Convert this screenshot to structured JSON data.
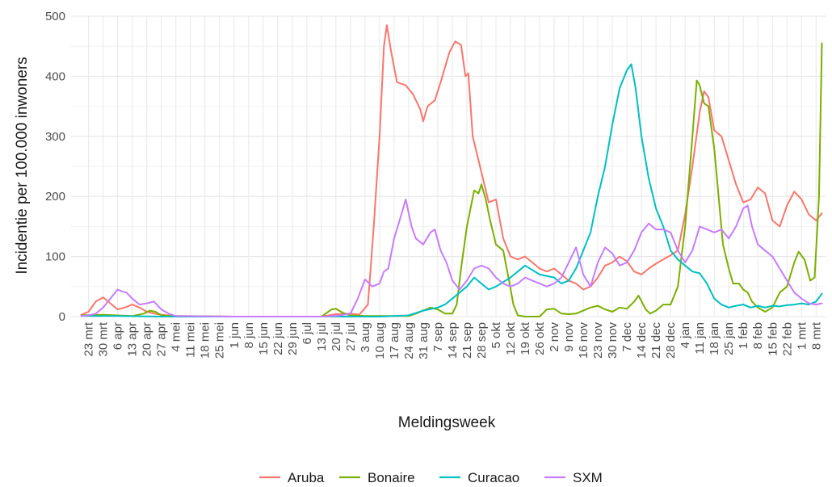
{
  "chart_data": {
    "type": "line",
    "xlabel": "Meldingsweek",
    "ylabel": "Incidentie per 100.000 inwoners",
    "ylim": [
      0,
      500
    ],
    "yticks": [
      0,
      100,
      200,
      300,
      400,
      500
    ],
    "grid": true,
    "legend_position": "bottom",
    "categories": [
      "23 mrt",
      "30 mrt",
      "6 apr",
      "13 apr",
      "20 apr",
      "27 apr",
      "4 mei",
      "11 mei",
      "18 mei",
      "25 mei",
      "1 jun",
      "8 jun",
      "15 jun",
      "22 jun",
      "29 jun",
      "6 jul",
      "13 jul",
      "20 jul",
      "27 jul",
      "3 aug",
      "10 aug",
      "17 aug",
      "24 aug",
      "31 aug",
      "7 sep",
      "14 sep",
      "21 sep",
      "28 sep",
      "5 okt",
      "12 okt",
      "19 okt",
      "26 okt",
      "2 nov",
      "9 nov",
      "16 nov",
      "23 nov",
      "30 nov",
      "7 dec",
      "14 dec",
      "21 dec",
      "28 dec",
      "4 jan",
      "11 jan",
      "18 jan",
      "25 jan",
      "1 feb",
      "8 feb",
      "15 feb",
      "22 feb",
      "1 mrt",
      "8 mrt"
    ],
    "series": [
      {
        "name": "Aruba",
        "color": "#F8766D",
        "points": [
          [
            -0.5,
            3
          ],
          [
            0,
            8
          ],
          [
            0.5,
            25
          ],
          [
            1,
            32
          ],
          [
            1.5,
            22
          ],
          [
            2,
            12
          ],
          [
            2.5,
            15
          ],
          [
            3,
            20
          ],
          [
            3.5,
            15
          ],
          [
            4,
            8
          ],
          [
            4.5,
            5
          ],
          [
            5,
            3
          ],
          [
            6,
            1
          ],
          [
            10,
            0
          ],
          [
            16,
            0
          ],
          [
            17,
            4
          ],
          [
            18,
            5
          ],
          [
            18.6,
            3
          ],
          [
            19.2,
            20
          ],
          [
            19.6,
            150
          ],
          [
            20,
            300
          ],
          [
            20.3,
            450
          ],
          [
            20.5,
            485
          ],
          [
            20.8,
            440
          ],
          [
            21.2,
            390
          ],
          [
            21.8,
            385
          ],
          [
            22.3,
            370
          ],
          [
            22.8,
            345
          ],
          [
            23,
            325
          ],
          [
            23.3,
            350
          ],
          [
            23.8,
            360
          ],
          [
            24.2,
            390
          ],
          [
            24.8,
            440
          ],
          [
            25.2,
            458
          ],
          [
            25.6,
            452
          ],
          [
            25.9,
            400
          ],
          [
            26.1,
            405
          ],
          [
            26.4,
            300
          ],
          [
            27,
            240
          ],
          [
            27.5,
            190
          ],
          [
            28,
            195
          ],
          [
            28.5,
            130
          ],
          [
            29,
            100
          ],
          [
            29.5,
            95
          ],
          [
            30,
            100
          ],
          [
            30.5,
            90
          ],
          [
            31,
            80
          ],
          [
            31.5,
            75
          ],
          [
            32,
            80
          ],
          [
            32.5,
            70
          ],
          [
            33,
            60
          ],
          [
            33.5,
            55
          ],
          [
            34,
            45
          ],
          [
            34.5,
            50
          ],
          [
            35,
            65
          ],
          [
            35.5,
            85
          ],
          [
            36,
            90
          ],
          [
            36.5,
            100
          ],
          [
            37,
            92
          ],
          [
            37.5,
            75
          ],
          [
            38,
            70
          ],
          [
            38.5,
            80
          ],
          [
            39,
            88
          ],
          [
            39.5,
            95
          ],
          [
            40,
            102
          ],
          [
            40.5,
            110
          ],
          [
            41,
            170
          ],
          [
            41.5,
            250
          ],
          [
            42,
            340
          ],
          [
            42.3,
            375
          ],
          [
            42.6,
            365
          ],
          [
            43,
            310
          ],
          [
            43.5,
            300
          ],
          [
            44,
            260
          ],
          [
            44.5,
            220
          ],
          [
            45,
            190
          ],
          [
            45.5,
            195
          ],
          [
            46,
            215
          ],
          [
            46.5,
            205
          ],
          [
            47,
            160
          ],
          [
            47.5,
            150
          ],
          [
            48,
            185
          ],
          [
            48.5,
            208
          ],
          [
            49,
            195
          ],
          [
            49.5,
            170
          ],
          [
            50,
            160
          ],
          [
            50.4,
            172
          ]
        ]
      },
      {
        "name": "Bonaire",
        "color": "#7CAE00",
        "points": [
          [
            -0.5,
            2
          ],
          [
            1,
            3
          ],
          [
            2,
            2
          ],
          [
            3,
            1
          ],
          [
            3.8,
            5
          ],
          [
            4.2,
            10
          ],
          [
            4.6,
            8
          ],
          [
            5,
            2
          ],
          [
            6,
            1
          ],
          [
            10,
            0
          ],
          [
            15,
            0
          ],
          [
            16,
            0
          ],
          [
            16.3,
            5
          ],
          [
            16.7,
            12
          ],
          [
            17,
            13
          ],
          [
            17.5,
            6
          ],
          [
            18,
            2
          ],
          [
            19,
            1
          ],
          [
            21,
            1
          ],
          [
            22,
            1
          ],
          [
            22.5,
            5
          ],
          [
            23,
            10
          ],
          [
            23.5,
            15
          ],
          [
            24,
            12
          ],
          [
            24.5,
            5
          ],
          [
            25,
            5
          ],
          [
            25.3,
            20
          ],
          [
            25.6,
            80
          ],
          [
            26,
            150
          ],
          [
            26.5,
            210
          ],
          [
            26.8,
            205
          ],
          [
            27,
            220
          ],
          [
            27.3,
            195
          ],
          [
            27.6,
            160
          ],
          [
            28,
            120
          ],
          [
            28.5,
            110
          ],
          [
            28.9,
            60
          ],
          [
            29.2,
            20
          ],
          [
            29.5,
            2
          ],
          [
            30,
            0
          ],
          [
            31,
            0
          ],
          [
            31.5,
            12
          ],
          [
            32,
            13
          ],
          [
            32.5,
            5
          ],
          [
            33,
            4
          ],
          [
            33.5,
            5
          ],
          [
            34,
            10
          ],
          [
            34.5,
            15
          ],
          [
            35,
            18
          ],
          [
            35.5,
            12
          ],
          [
            36,
            8
          ],
          [
            36.5,
            15
          ],
          [
            37,
            13
          ],
          [
            37.5,
            25
          ],
          [
            37.8,
            35
          ],
          [
            38.3,
            12
          ],
          [
            38.6,
            5
          ],
          [
            39,
            10
          ],
          [
            39.5,
            20
          ],
          [
            40,
            20
          ],
          [
            40.5,
            50
          ],
          [
            41,
            150
          ],
          [
            41.5,
            300
          ],
          [
            41.8,
            393
          ],
          [
            42,
            385
          ],
          [
            42.3,
            355
          ],
          [
            42.6,
            350
          ],
          [
            43,
            280
          ],
          [
            43.3,
            200
          ],
          [
            43.6,
            120
          ],
          [
            44,
            80
          ],
          [
            44.3,
            55
          ],
          [
            44.7,
            55
          ],
          [
            45,
            45
          ],
          [
            45.3,
            40
          ],
          [
            45.6,
            25
          ],
          [
            46,
            15
          ],
          [
            46.5,
            8
          ],
          [
            47,
            15
          ],
          [
            47.5,
            40
          ],
          [
            48,
            50
          ],
          [
            48.5,
            90
          ],
          [
            48.8,
            108
          ],
          [
            49.2,
            95
          ],
          [
            49.6,
            60
          ],
          [
            49.9,
            65
          ],
          [
            50.2,
            200
          ],
          [
            50.4,
            455
          ]
        ]
      },
      {
        "name": "Curacao",
        "color": "#00BFC4",
        "points": [
          [
            -0.5,
            1
          ],
          [
            2,
            1
          ],
          [
            5,
            0
          ],
          [
            15,
            0
          ],
          [
            18,
            0
          ],
          [
            20,
            0
          ],
          [
            22,
            2
          ],
          [
            23,
            10
          ],
          [
            24,
            15
          ],
          [
            24.5,
            20
          ],
          [
            25,
            30
          ],
          [
            26,
            50
          ],
          [
            26.5,
            65
          ],
          [
            27,
            55
          ],
          [
            27.5,
            45
          ],
          [
            28,
            50
          ],
          [
            29,
            65
          ],
          [
            29.5,
            75
          ],
          [
            30,
            85
          ],
          [
            31,
            70
          ],
          [
            32,
            65
          ],
          [
            32.5,
            55
          ],
          [
            33,
            60
          ],
          [
            33.5,
            80
          ],
          [
            34,
            110
          ],
          [
            34.5,
            140
          ],
          [
            35,
            200
          ],
          [
            35.5,
            250
          ],
          [
            36,
            320
          ],
          [
            36.5,
            380
          ],
          [
            37,
            410
          ],
          [
            37.3,
            420
          ],
          [
            37.6,
            380
          ],
          [
            38,
            300
          ],
          [
            38.5,
            230
          ],
          [
            39,
            180
          ],
          [
            39.5,
            150
          ],
          [
            40,
            110
          ],
          [
            40.5,
            95
          ],
          [
            41,
            85
          ],
          [
            41.5,
            75
          ],
          [
            42,
            72
          ],
          [
            42.5,
            55
          ],
          [
            43,
            30
          ],
          [
            43.5,
            20
          ],
          [
            44,
            15
          ],
          [
            44.5,
            18
          ],
          [
            45,
            20
          ],
          [
            45.5,
            15
          ],
          [
            46,
            18
          ],
          [
            46.5,
            15
          ],
          [
            47,
            18
          ],
          [
            47.5,
            17
          ],
          [
            48,
            19
          ],
          [
            48.5,
            20
          ],
          [
            49,
            22
          ],
          [
            49.5,
            20
          ],
          [
            50,
            25
          ],
          [
            50.4,
            38
          ]
        ]
      },
      {
        "name": "SXM",
        "color": "#C77CFF",
        "points": [
          [
            -0.5,
            1
          ],
          [
            0,
            2
          ],
          [
            0.5,
            5
          ],
          [
            1,
            15
          ],
          [
            1.5,
            30
          ],
          [
            2,
            45
          ],
          [
            2.3,
            42
          ],
          [
            2.6,
            40
          ],
          [
            3,
            30
          ],
          [
            3.5,
            20
          ],
          [
            4,
            22
          ],
          [
            4.5,
            25
          ],
          [
            5,
            12
          ],
          [
            5.5,
            5
          ],
          [
            6,
            1
          ],
          [
            10,
            0
          ],
          [
            16,
            0
          ],
          [
            17,
            1
          ],
          [
            18,
            5
          ],
          [
            18.5,
            30
          ],
          [
            19,
            62
          ],
          [
            19.5,
            50
          ],
          [
            20,
            55
          ],
          [
            20.3,
            75
          ],
          [
            20.6,
            80
          ],
          [
            21,
            130
          ],
          [
            21.5,
            170
          ],
          [
            21.8,
            195
          ],
          [
            22.2,
            150
          ],
          [
            22.5,
            130
          ],
          [
            23,
            120
          ],
          [
            23.5,
            140
          ],
          [
            23.8,
            145
          ],
          [
            24.2,
            110
          ],
          [
            24.6,
            90
          ],
          [
            25,
            60
          ],
          [
            25.5,
            45
          ],
          [
            26,
            60
          ],
          [
            26.5,
            80
          ],
          [
            27,
            85
          ],
          [
            27.5,
            80
          ],
          [
            28,
            65
          ],
          [
            28.5,
            55
          ],
          [
            29,
            50
          ],
          [
            29.5,
            55
          ],
          [
            30,
            65
          ],
          [
            30.5,
            60
          ],
          [
            31,
            55
          ],
          [
            31.5,
            50
          ],
          [
            32,
            55
          ],
          [
            32.5,
            65
          ],
          [
            33,
            90
          ],
          [
            33.5,
            115
          ],
          [
            34,
            70
          ],
          [
            34.5,
            50
          ],
          [
            35,
            90
          ],
          [
            35.5,
            115
          ],
          [
            36,
            105
          ],
          [
            36.5,
            85
          ],
          [
            37,
            90
          ],
          [
            37.5,
            110
          ],
          [
            38,
            140
          ],
          [
            38.5,
            155
          ],
          [
            39,
            145
          ],
          [
            39.5,
            145
          ],
          [
            40,
            140
          ],
          [
            40.5,
            110
          ],
          [
            41,
            90
          ],
          [
            41.5,
            110
          ],
          [
            42,
            150
          ],
          [
            42.5,
            145
          ],
          [
            43,
            140
          ],
          [
            43.5,
            145
          ],
          [
            44,
            130
          ],
          [
            44.5,
            150
          ],
          [
            45,
            180
          ],
          [
            45.3,
            185
          ],
          [
            45.6,
            150
          ],
          [
            46,
            120
          ],
          [
            46.5,
            110
          ],
          [
            47,
            100
          ],
          [
            47.5,
            80
          ],
          [
            48,
            60
          ],
          [
            48.5,
            40
          ],
          [
            49,
            30
          ],
          [
            49.5,
            22
          ],
          [
            50,
            20
          ],
          [
            50.4,
            22
          ]
        ]
      }
    ]
  }
}
